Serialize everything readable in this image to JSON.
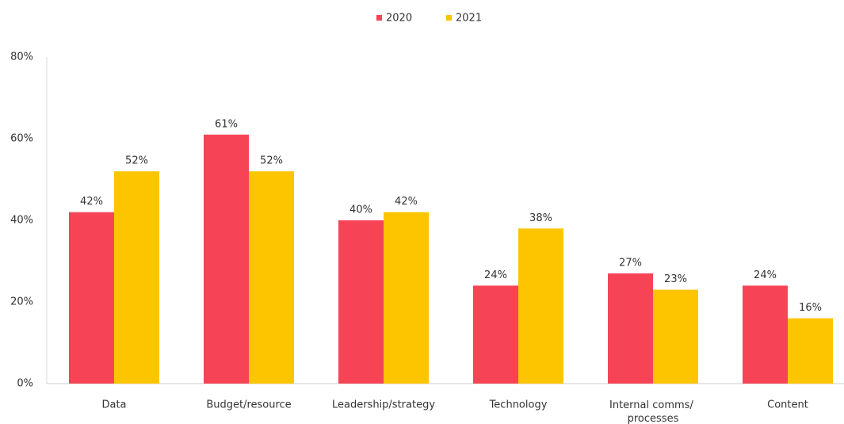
{
  "chart_data": {
    "type": "bar",
    "categories": [
      "Data",
      "Budget/resource",
      "Leadership/strategy",
      "Technology",
      "Internal comms/ processes",
      "Content"
    ],
    "series": [
      {
        "name": "2020",
        "color": "#f64456",
        "values": [
          42,
          61,
          40,
          24,
          27,
          24
        ],
        "value_labels": [
          "42%",
          "61%",
          "40%",
          "24%",
          "27%",
          "24%"
        ]
      },
      {
        "name": "2021",
        "color": "#fcc500",
        "values": [
          52,
          52,
          42,
          38,
          23,
          16
        ],
        "value_labels": [
          "52%",
          "52%",
          "42%",
          "38%",
          "23%",
          "16%"
        ]
      }
    ],
    "ylim": [
      0,
      80
    ],
    "yticks": [
      {
        "value": 0,
        "label": "0%"
      },
      {
        "value": 20,
        "label": "20%"
      },
      {
        "value": 40,
        "label": "40%"
      },
      {
        "value": 60,
        "label": "60%"
      },
      {
        "value": 80,
        "label": "80%"
      }
    ],
    "grid": false,
    "legend": "top"
  }
}
